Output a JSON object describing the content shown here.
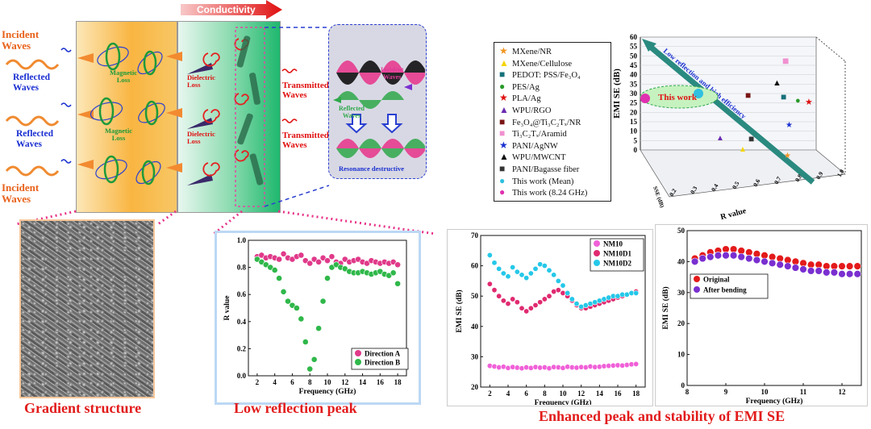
{
  "header": {
    "conductivity": "Conductivity"
  },
  "left_labels": {
    "incident": [
      "Incident",
      "Waves"
    ],
    "reflected": [
      "Reflected",
      "Waves"
    ],
    "magnetic_loss": [
      "Magnetic",
      "Loss"
    ],
    "dielectric_loss": [
      "Dielectric",
      "Loss"
    ],
    "transmitted": [
      "Transmitted",
      "Waves"
    ]
  },
  "resonance": {
    "incident": [
      "Incident",
      "Waves"
    ],
    "reflected": [
      "Reflected",
      "Waves"
    ],
    "title": "Resonance destructive"
  },
  "captions": {
    "gradient": "Gradient structure",
    "low_reflection": "Low reflection peak",
    "enhanced": "Enhanced peak and stability of EMI SE"
  },
  "legend3d": [
    {
      "label": "MXene/NR",
      "symbol": "star",
      "color": "#f29520"
    },
    {
      "label": "MXene/Cellulose",
      "symbol": "triangle",
      "color": "#f5d400"
    },
    {
      "label": "PEDOT: PSS/Fe₃O₄",
      "symbol": "square",
      "color": "#17707a"
    },
    {
      "label": "PES/Ag",
      "symbol": "circle",
      "color": "#2a9a2a"
    },
    {
      "label": "PLA/Ag",
      "symbol": "star",
      "color": "#e01010"
    },
    {
      "label": "WPU/RGO",
      "symbol": "triangle",
      "color": "#6a2bb0"
    },
    {
      "label": "Fe₃O₄@Ti₃C₂Tₓ/NR",
      "symbol": "square",
      "color": "#7a1515"
    },
    {
      "label": "Ti₃C₂Tₓ/Aramid",
      "symbol": "square",
      "color": "#f090d0"
    },
    {
      "label": "PANI/AgNW",
      "symbol": "star",
      "color": "#1a30d0"
    },
    {
      "label": "WPU/MWCNT",
      "symbol": "triangle",
      "color": "#111111"
    },
    {
      "label": "PANI/Bagasse fiber",
      "symbol": "square",
      "color": "#333333"
    },
    {
      "label": "This work (Mean)",
      "symbol": "circle",
      "color": "#30c0e0"
    },
    {
      "label": "This work (8.24 GHz)",
      "symbol": "circle",
      "color": "#e030b0"
    }
  ],
  "chart_data": [
    {
      "type": "scatter",
      "subtype": "3d",
      "zlabel": "EMI SE (dB)",
      "xlabel": "R value",
      "ylabel": "SSE (dB)",
      "z_ticks": [
        "0",
        "5",
        "10",
        "15",
        "20",
        "25",
        "30",
        "35",
        "40",
        "45",
        "50",
        "55",
        "60"
      ],
      "r_ticks": [
        "1.0",
        "0.9",
        "0.8",
        "0.7",
        "0.6",
        "0.5",
        "0.4",
        "0.3",
        "0.2"
      ],
      "annotations": [
        "This work",
        "Low reflection and high efficiency"
      ]
    },
    {
      "type": "scatter",
      "xlabel": "Frequency (GHz)",
      "ylabel": "R value",
      "xlim": [
        1,
        19
      ],
      "ylim": [
        0,
        1.0
      ],
      "x_ticks": [
        "2",
        "4",
        "6",
        "8",
        "10",
        "12",
        "14",
        "16",
        "18"
      ],
      "y_ticks": [
        "0.0",
        "0.2",
        "0.4",
        "0.6",
        "0.8",
        "1.0"
      ],
      "x": [
        2,
        2.5,
        3,
        3.5,
        4,
        4.5,
        5,
        5.5,
        6,
        6.5,
        7,
        7.5,
        8,
        8.5,
        9,
        9.5,
        10,
        10.5,
        11,
        11.5,
        12,
        12.5,
        13,
        13.5,
        14,
        14.5,
        15,
        15.5,
        16,
        16.5,
        17,
        17.5,
        18
      ],
      "series": [
        {
          "name": "Direction A",
          "color": "#e03a8a",
          "values": [
            0.88,
            0.89,
            0.87,
            0.88,
            0.87,
            0.86,
            0.9,
            0.87,
            0.86,
            0.88,
            0.89,
            0.85,
            0.83,
            0.86,
            0.84,
            0.87,
            0.85,
            0.88,
            0.84,
            0.83,
            0.86,
            0.84,
            0.85,
            0.86,
            0.84,
            0.83,
            0.85,
            0.84,
            0.83,
            0.84,
            0.83,
            0.84,
            0.82
          ]
        },
        {
          "name": "Direction B",
          "color": "#2fb84a",
          "values": [
            0.86,
            0.84,
            0.82,
            0.8,
            0.78,
            0.72,
            0.62,
            0.55,
            0.52,
            0.5,
            0.42,
            0.25,
            0.05,
            0.12,
            0.35,
            0.55,
            0.72,
            0.8,
            0.82,
            0.8,
            0.79,
            0.77,
            0.76,
            0.76,
            0.77,
            0.76,
            0.75,
            0.76,
            0.77,
            0.75,
            0.74,
            0.76,
            0.68
          ]
        }
      ]
    },
    {
      "type": "scatter",
      "xlabel": "Frequency (GHz)",
      "ylabel": "EMI SE (dB)",
      "xlim": [
        1,
        19
      ],
      "ylim": [
        20,
        70
      ],
      "x_ticks": [
        "2",
        "4",
        "6",
        "8",
        "10",
        "12",
        "14",
        "16",
        "18"
      ],
      "y_ticks": [
        "20",
        "30",
        "40",
        "50",
        "60",
        "70"
      ],
      "x": [
        2,
        2.5,
        3,
        3.5,
        4,
        4.5,
        5,
        5.5,
        6,
        6.5,
        7,
        7.5,
        8,
        8.5,
        9,
        9.5,
        10,
        10.5,
        11,
        11.5,
        12,
        12.5,
        13,
        13.5,
        14,
        14.5,
        15,
        15.5,
        16,
        16.5,
        17,
        17.5,
        18
      ],
      "series": [
        {
          "name": "NM10",
          "color": "#f060d8",
          "values": [
            27,
            26.8,
            26.5,
            26.7,
            26.3,
            26.6,
            26.4,
            26.2,
            26.5,
            26.3,
            26.6,
            26.4,
            26.5,
            26.2,
            26.6,
            26.5,
            26.3,
            26.7,
            26.5,
            26.4,
            26.6,
            26.5,
            26.8,
            26.6,
            26.7,
            26.9,
            27,
            27.1,
            27.2,
            27.1,
            27.3,
            27.5,
            27.6
          ]
        },
        {
          "name": "NM10D1",
          "color": "#e02a70",
          "values": [
            54,
            52,
            50,
            48.5,
            47.5,
            49,
            48,
            46,
            45,
            46,
            47,
            48,
            49,
            50,
            51.5,
            52,
            51,
            50,
            48.5,
            47,
            46,
            46,
            46.5,
            47,
            47.5,
            48,
            48.5,
            49,
            49.5,
            50,
            50.5,
            51,
            51.5
          ]
        },
        {
          "name": "NM10D2",
          "color": "#25c8e8",
          "values": [
            63.5,
            61,
            59,
            57.5,
            56.5,
            59.5,
            58,
            57,
            56,
            57.5,
            59,
            60.5,
            60,
            58.5,
            57,
            55,
            53.5,
            51,
            49,
            47.5,
            46.5,
            47,
            47.5,
            48,
            48.5,
            49,
            49.5,
            50,
            50,
            50.5,
            50.5,
            51,
            51
          ]
        }
      ]
    },
    {
      "type": "scatter",
      "xlabel": "Frequency (GHz)",
      "ylabel": "EMI SE (dB)",
      "xlim": [
        8,
        12.5
      ],
      "ylim": [
        0,
        50
      ],
      "x_ticks": [
        "8",
        "9",
        "10",
        "11",
        "12"
      ],
      "y_ticks": [
        "0",
        "10",
        "20",
        "30",
        "40",
        "50"
      ],
      "x": [
        8.2,
        8.4,
        8.6,
        8.8,
        9.0,
        9.2,
        9.4,
        9.6,
        9.8,
        10.0,
        10.2,
        10.4,
        10.6,
        10.8,
        11.0,
        11.2,
        11.4,
        11.6,
        11.8,
        12.0,
        12.2,
        12.4
      ],
      "series": [
        {
          "name": "Original",
          "color": "#e41a1a",
          "values": [
            41,
            42,
            43,
            43.5,
            44,
            44,
            43.5,
            43,
            42.5,
            42,
            41.5,
            41,
            40.5,
            40,
            39.5,
            39,
            39,
            38.5,
            38.5,
            38.5,
            38.5,
            38.5
          ]
        },
        {
          "name": "After bending",
          "color": "#7a2fd0",
          "values": [
            40,
            41,
            41.5,
            42,
            42,
            42,
            41.5,
            41,
            40.5,
            40,
            39.5,
            39,
            38.5,
            38,
            37.5,
            37,
            37,
            36.5,
            36.5,
            36,
            36,
            36
          ]
        }
      ]
    }
  ]
}
